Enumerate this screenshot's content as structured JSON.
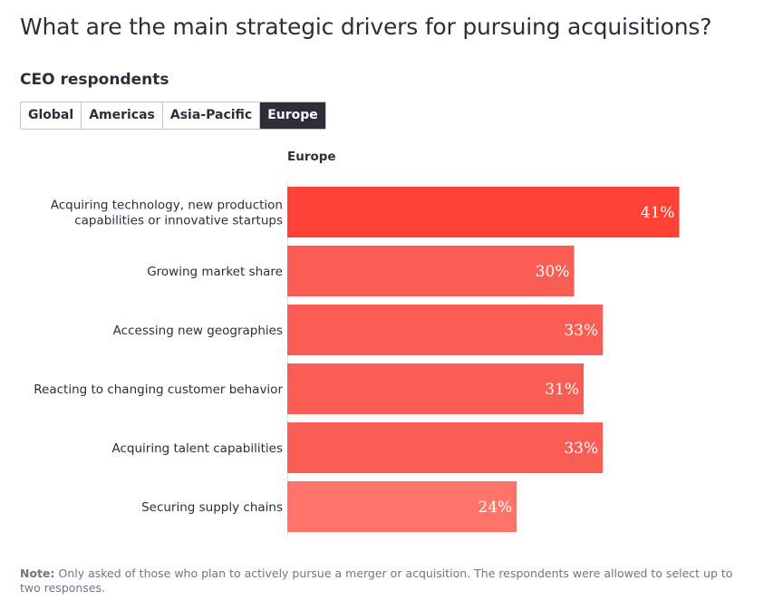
{
  "title": "What are the main strategic drivers for pursuing acquisitions?",
  "subtitle": "CEO respondents",
  "tabs": [
    {
      "label": "Global",
      "active": false
    },
    {
      "label": "Americas",
      "active": false
    },
    {
      "label": "Asia-Pacific",
      "active": false
    },
    {
      "label": "Europe",
      "active": true
    }
  ],
  "note": {
    "label": "Note:",
    "text": " Only asked of those who plan to actively pursue a merger or acquisition. The respondents were allowed to select up to two responses."
  },
  "colors": {
    "highlight": "#ff4136",
    "bar": "#f95d54",
    "bar_light": "#ff736a",
    "axis": "#e1e1e6"
  },
  "chart_data": {
    "type": "bar",
    "orientation": "horizontal",
    "panel_label": "Europe",
    "categories": [
      [
        "Acquiring technology, new production",
        "capabilities or innovative startups"
      ],
      [
        "Growing market share"
      ],
      [
        "Accessing new geographies"
      ],
      [
        "Reacting to changing customer behavior"
      ],
      [
        "Acquiring talent capabilities"
      ],
      [
        "Securing supply chains"
      ]
    ],
    "values": [
      41,
      30,
      33,
      31,
      33,
      24
    ],
    "value_labels": [
      "41%",
      "30%",
      "33%",
      "31%",
      "33%",
      "24%"
    ],
    "unit": "%",
    "xlim": [
      0,
      50
    ],
    "bar_colors": [
      "#ff4136",
      "#f95d54",
      "#f95d54",
      "#f95d54",
      "#f95d54",
      "#ff736a"
    ]
  }
}
